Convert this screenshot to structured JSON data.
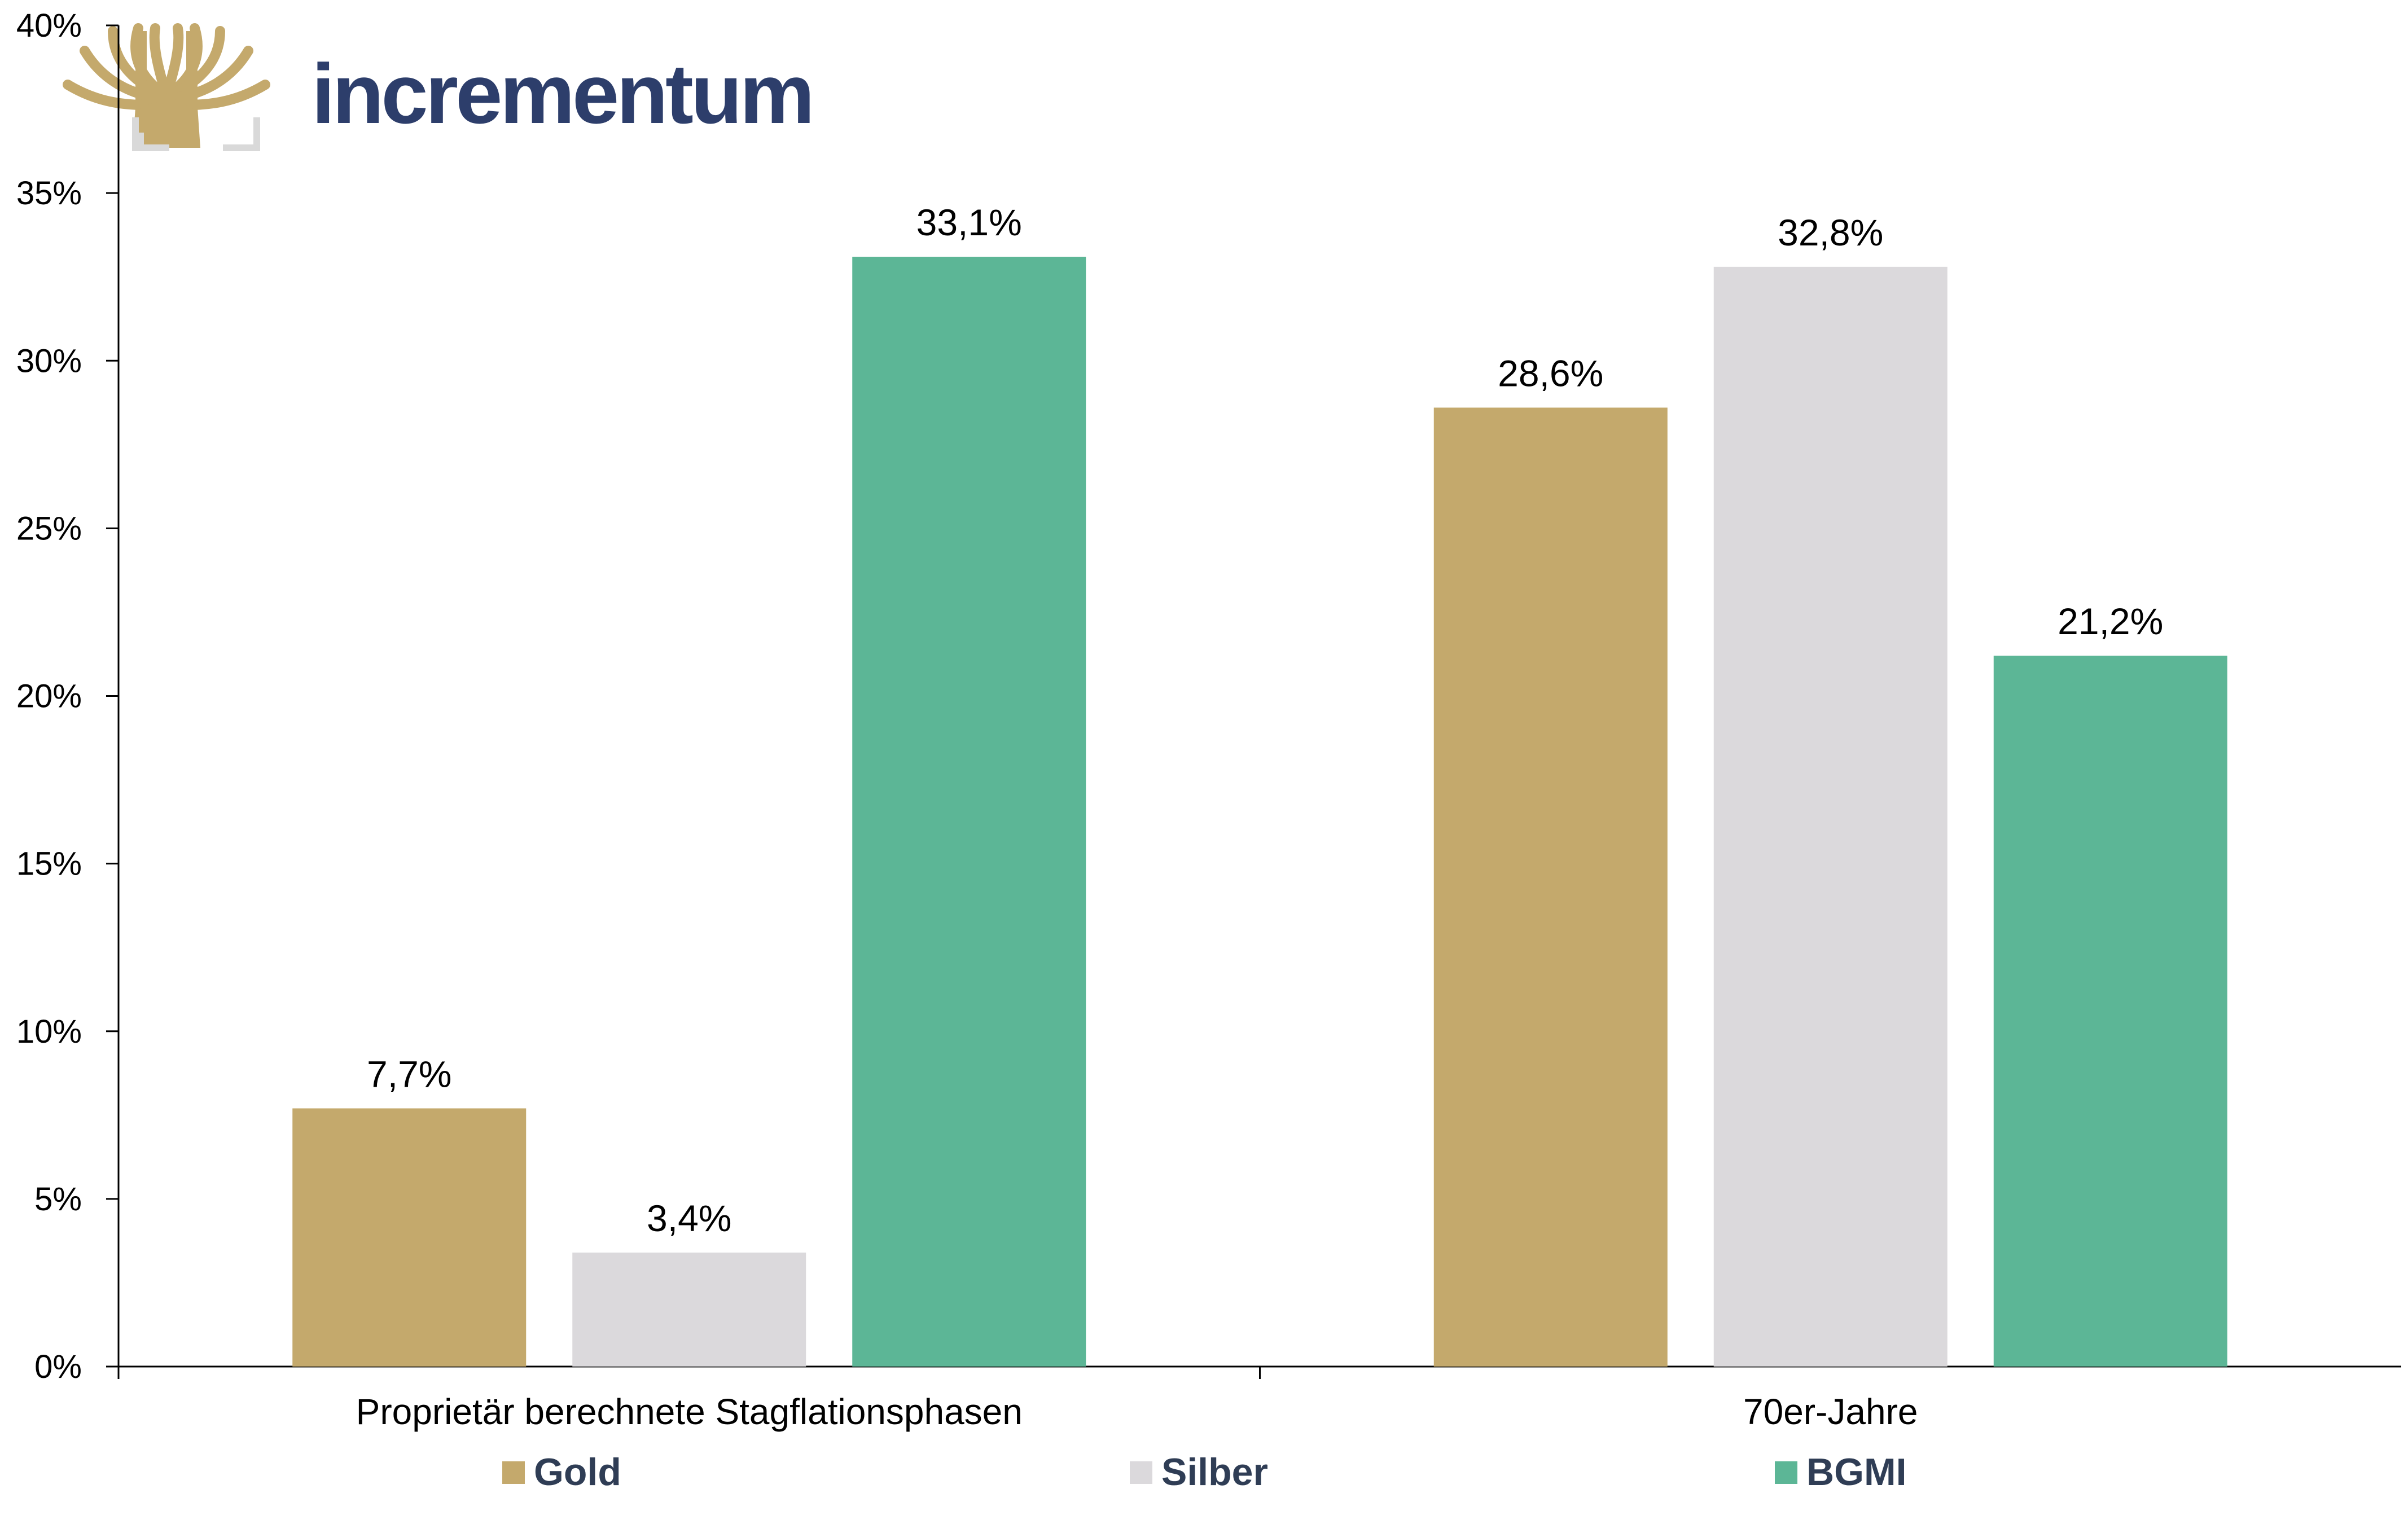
{
  "brand": {
    "name": "incrementum",
    "logo_icon": "tree-logo-icon",
    "color": "#2d3e6b",
    "logo_color": "#c4a96c"
  },
  "chart_data": {
    "type": "bar",
    "categories": [
      "Proprietär berechnete Stagflationsphasen",
      "70er-Jahre"
    ],
    "series": [
      {
        "name": "Gold",
        "color": "#c4a96c",
        "values": [
          7.7,
          28.6
        ],
        "labels": [
          "7,7%",
          "28,6%"
        ]
      },
      {
        "name": "Silber",
        "color": "#dbd9dc",
        "values": [
          3.4,
          32.8
        ],
        "labels": [
          "3,4%",
          "32,8%"
        ]
      },
      {
        "name": "BGMI",
        "color": "#5cb696",
        "values": [
          33.1,
          21.2
        ],
        "labels": [
          "33,1%",
          "21,2%"
        ]
      }
    ],
    "ylim": [
      0,
      40
    ],
    "yticks": [
      {
        "value": 0,
        "label": "0%"
      },
      {
        "value": 5,
        "label": "5%"
      },
      {
        "value": 10,
        "label": "10%"
      },
      {
        "value": 15,
        "label": "15%"
      },
      {
        "value": 20,
        "label": "20%"
      },
      {
        "value": 25,
        "label": "25%"
      },
      {
        "value": 30,
        "label": "30%"
      },
      {
        "value": 35,
        "label": "35%"
      },
      {
        "value": 40,
        "label": "40%"
      }
    ],
    "grid": false,
    "legend": "bottom"
  }
}
